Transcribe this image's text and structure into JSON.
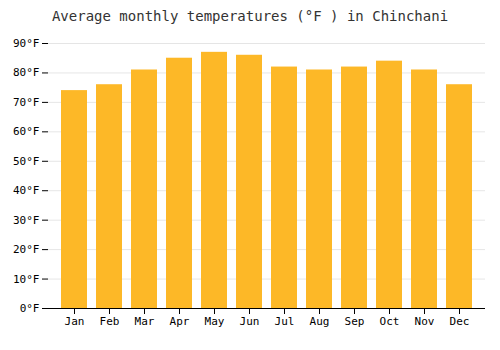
{
  "chart_data": {
    "type": "bar",
    "title": "Average monthly temperatures (°F ) in Chinchani",
    "categories": [
      "Jan",
      "Feb",
      "Mar",
      "Apr",
      "May",
      "Jun",
      "Jul",
      "Aug",
      "Sep",
      "Oct",
      "Nov",
      "Dec"
    ],
    "values": [
      74,
      76,
      81,
      85,
      87,
      86,
      82,
      81,
      82,
      84,
      81,
      76
    ],
    "color": "#FDB827",
    "ylim": [
      0,
      90
    ],
    "yticks": [
      {
        "value": 0,
        "label": "0°F"
      },
      {
        "value": 10,
        "label": "10°F"
      },
      {
        "value": 20,
        "label": "20°F"
      },
      {
        "value": 30,
        "label": "30°F"
      },
      {
        "value": 40,
        "label": "40°F"
      },
      {
        "value": 50,
        "label": "50°F"
      },
      {
        "value": 60,
        "label": "60°F"
      },
      {
        "value": 70,
        "label": "70°F"
      },
      {
        "value": 80,
        "label": "80°F"
      },
      {
        "value": 90,
        "label": "90°F"
      }
    ],
    "grid": true
  }
}
